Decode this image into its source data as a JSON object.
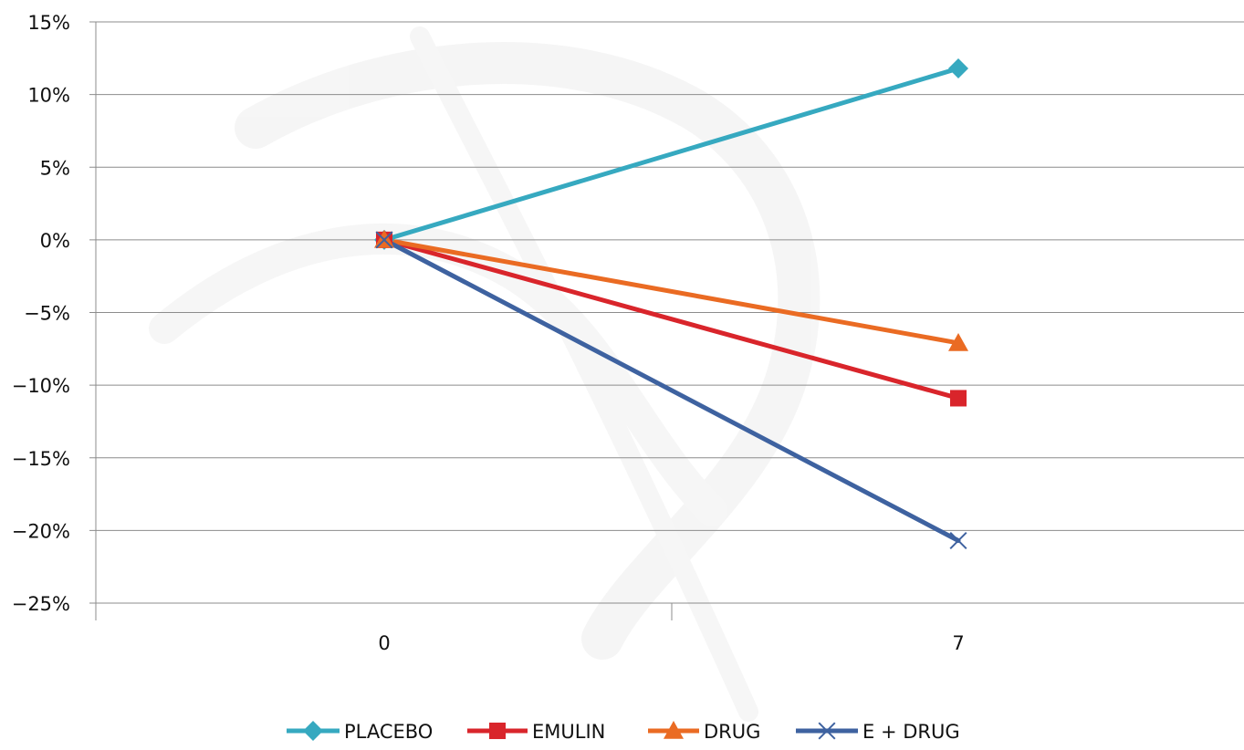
{
  "chart_data": {
    "type": "line",
    "title": "",
    "xlabel": "",
    "ylabel": "",
    "x": [
      0,
      7
    ],
    "categories": [
      "0",
      "7"
    ],
    "ylim": [
      -25,
      15
    ],
    "yticks": [
      15,
      10,
      5,
      0,
      -5,
      -10,
      -15,
      -20,
      -25
    ],
    "ytick_labels": [
      "15%",
      "10%",
      "5%",
      "0%",
      "−5%",
      "−10%",
      "−15%",
      "−20%",
      "−25%"
    ],
    "grid": "horizontal",
    "legend_position": "bottom",
    "series": [
      {
        "name": "PLACEBO",
        "values": [
          0,
          11.8
        ],
        "color": "#36a9c0",
        "marker": "diamond"
      },
      {
        "name": "EMULIN",
        "values": [
          0,
          -10.9
        ],
        "color": "#d9252b",
        "marker": "square"
      },
      {
        "name": "DRUG",
        "values": [
          0,
          -7.1
        ],
        "color": "#ea6b23",
        "marker": "triangle"
      },
      {
        "name": "E + DRUG",
        "values": [
          0,
          -20.7
        ],
        "color": "#3e62a0",
        "marker": "x"
      }
    ]
  }
}
